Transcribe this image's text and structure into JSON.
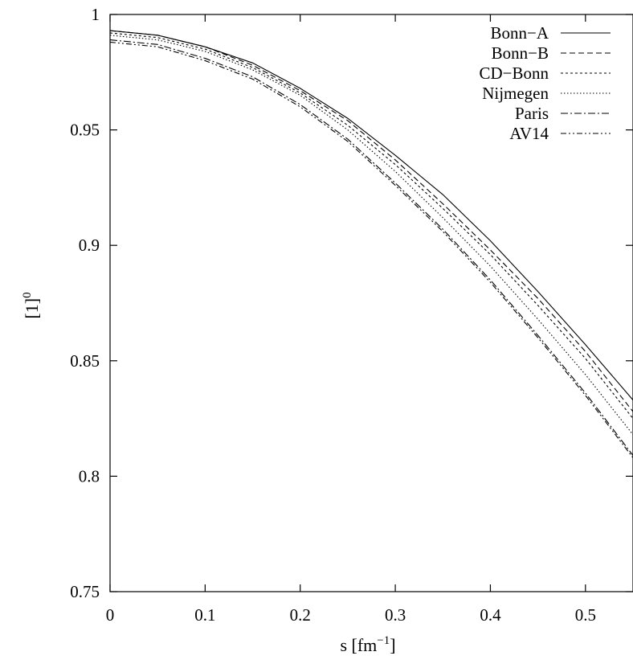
{
  "chart_data": {
    "type": "line",
    "xlabel": "s [fm",
    "xlabel_sup": "−1",
    "xlabel_suffix": "]",
    "ylabel": "[1]",
    "ylabel_sup": "0",
    "xlim": [
      0,
      0.55
    ],
    "ylim": [
      0.75,
      1.0
    ],
    "xticks": [
      0,
      0.1,
      0.2,
      0.3,
      0.4,
      0.5
    ],
    "xtick_labels": [
      "0",
      "0.1",
      "0.2",
      "0.3",
      "0.4",
      "0.5"
    ],
    "yticks": [
      0.75,
      0.8,
      0.85,
      0.9,
      0.95,
      1.0
    ],
    "ytick_labels": [
      "0.75",
      "0.8",
      "0.85",
      "0.9",
      "0.95",
      "1"
    ],
    "grid": false,
    "legend_position": "top-right",
    "x": [
      0,
      0.05,
      0.1,
      0.15,
      0.2,
      0.25,
      0.3,
      0.35,
      0.4,
      0.45,
      0.5,
      0.55
    ],
    "series": [
      {
        "name": "Bonn−A",
        "dash": "solid",
        "values": [
          0.993,
          0.991,
          0.986,
          0.979,
          0.968,
          0.955,
          0.939,
          0.922,
          0.902,
          0.88,
          0.857,
          0.833
        ]
      },
      {
        "name": "Bonn−B",
        "dash": "dashed",
        "values": [
          0.993,
          0.991,
          0.986,
          0.978,
          0.967,
          0.954,
          0.937,
          0.918,
          0.898,
          0.877,
          0.854,
          0.828
        ]
      },
      {
        "name": "CD−Bonn",
        "dash": "dotted-dense",
        "values": [
          0.992,
          0.99,
          0.985,
          0.977,
          0.966,
          0.952,
          0.935,
          0.916,
          0.896,
          0.874,
          0.851,
          0.825
        ]
      },
      {
        "name": "Nijmegen",
        "dash": "dotted",
        "values": [
          0.991,
          0.989,
          0.984,
          0.976,
          0.965,
          0.95,
          0.932,
          0.912,
          0.891,
          0.868,
          0.844,
          0.818
        ]
      },
      {
        "name": "Paris",
        "dash": "dash-dot",
        "values": [
          0.989,
          0.987,
          0.981,
          0.973,
          0.961,
          0.946,
          0.927,
          0.907,
          0.885,
          0.861,
          0.836,
          0.809
        ]
      },
      {
        "name": "AV14",
        "dash": "dash-dot-dot",
        "values": [
          0.988,
          0.986,
          0.98,
          0.972,
          0.96,
          0.945,
          0.926,
          0.906,
          0.884,
          0.86,
          0.835,
          0.808
        ]
      }
    ]
  }
}
